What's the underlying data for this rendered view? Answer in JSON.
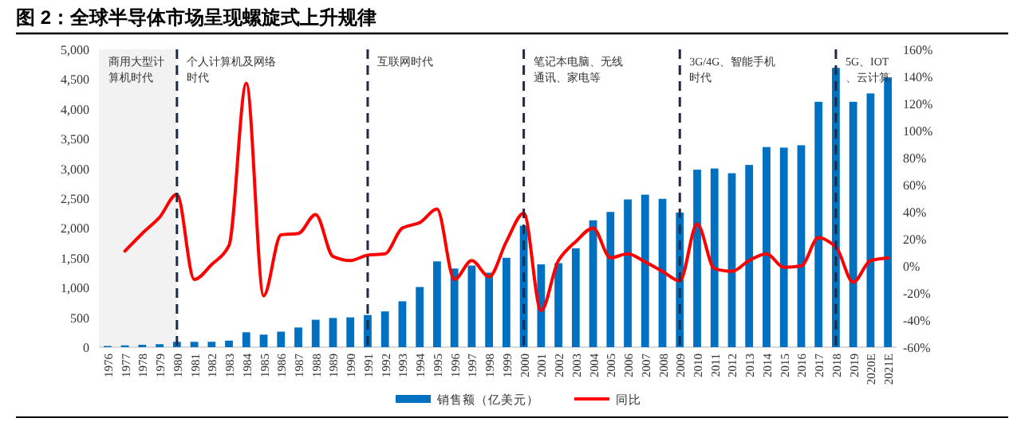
{
  "chart_data": {
    "type": "bar",
    "title": "图 2：全球半导体市场呈现螺旋式上升规律",
    "categories": [
      "1976",
      "1977",
      "1978",
      "1979",
      "1980",
      "1981",
      "1982",
      "1983",
      "1984",
      "1985",
      "1986",
      "1987",
      "1988",
      "1989",
      "1990",
      "1991",
      "1992",
      "1993",
      "1994",
      "1995",
      "1996",
      "1997",
      "1998",
      "1999",
      "2000",
      "2001",
      "2002",
      "2003",
      "2004",
      "2005",
      "2006",
      "2007",
      "2008",
      "2009",
      "2010",
      "2011",
      "2012",
      "2013",
      "2014",
      "2015",
      "2016",
      "2017",
      "2018",
      "2019",
      "2020E",
      "2021E"
    ],
    "series": [
      {
        "name": "销售额（亿美元）",
        "color": "#0070c0",
        "values": [
          20,
          30,
          40,
          50,
          90,
          90,
          90,
          110,
          250,
          210,
          260,
          330,
          460,
          490,
          500,
          540,
          600,
          770,
          1010,
          1440,
          1320,
          1370,
          1250,
          1500,
          2040,
          1390,
          1410,
          1660,
          2130,
          2270,
          2480,
          2560,
          2490,
          2260,
          2980,
          3000,
          2920,
          3060,
          3360,
          3350,
          3390,
          4120,
          4690,
          4120,
          4260,
          4530
        ]
      },
      {
        "name": "同比",
        "type": "line",
        "axis": "y2",
        "color": "#ff0000",
        "values": [
          null,
          11,
          24,
          36,
          53,
          -10,
          1,
          15,
          135,
          -22,
          23,
          24,
          38,
          7,
          4,
          8,
          9,
          28,
          32,
          42,
          -10,
          4,
          -8,
          18,
          39,
          -33,
          4,
          18,
          28,
          6,
          9,
          3,
          -4,
          -11,
          31,
          -2,
          -4,
          4,
          9,
          -1,
          0,
          21,
          14,
          -12,
          4,
          6
        ]
      }
    ],
    "ylim": [
      0,
      5000
    ],
    "yticks": [
      0,
      500,
      {
        "value": 1000,
        "label": "1,000"
      },
      {
        "value": 1500,
        "label": "1,500"
      },
      {
        "value": 2000,
        "label": "2,000"
      },
      {
        "value": 2500,
        "label": "2,500"
      },
      {
        "value": 3000,
        "label": "3,000"
      },
      {
        "value": 3500,
        "label": "3,500"
      },
      {
        "value": 4000,
        "label": "4,000"
      },
      {
        "value": 4500,
        "label": "4,500"
      },
      {
        "value": 5000,
        "label": "5,000"
      }
    ],
    "y2lim": [
      -60,
      160
    ],
    "y2ticks": [
      {
        "value": -60,
        "label": "-60%"
      },
      {
        "value": -40,
        "label": "-40%"
      },
      {
        "value": -20,
        "label": "-20%"
      },
      {
        "value": 0,
        "label": "0%"
      },
      {
        "value": 20,
        "label": "20%"
      },
      {
        "value": 40,
        "label": "40%"
      },
      {
        "value": 60,
        "label": "60%"
      },
      {
        "value": 80,
        "label": "80%"
      },
      {
        "value": 100,
        "label": "100%"
      },
      {
        "value": 120,
        "label": "120%"
      },
      {
        "value": 140,
        "label": "140%"
      },
      {
        "value": 160,
        "label": "160%"
      }
    ],
    "ref_lines": [
      {
        "axis": "x",
        "value": "1980",
        "line_style": "dashed"
      },
      {
        "axis": "x",
        "value": "1991",
        "line_style": "dashed"
      },
      {
        "axis": "x",
        "value": "2000",
        "line_style": "dashed"
      },
      {
        "axis": "x",
        "value": "2009",
        "line_style": "dashed"
      },
      {
        "axis": "x",
        "value": "2018",
        "line_style": "dashed"
      }
    ],
    "bands": [
      {
        "axis": "x",
        "from": "1976",
        "to": "1980",
        "color": "#f2f2f2"
      }
    ],
    "annotations": [
      "商用大型计算机时代",
      "个人计算机及网络时代",
      "互联网时代",
      "笔记本电脑、无线通讯、家电等",
      "3G/4G、智能手机时代",
      "5G、IOT、云计算"
    ],
    "legend": "bottom",
    "grid": false
  }
}
